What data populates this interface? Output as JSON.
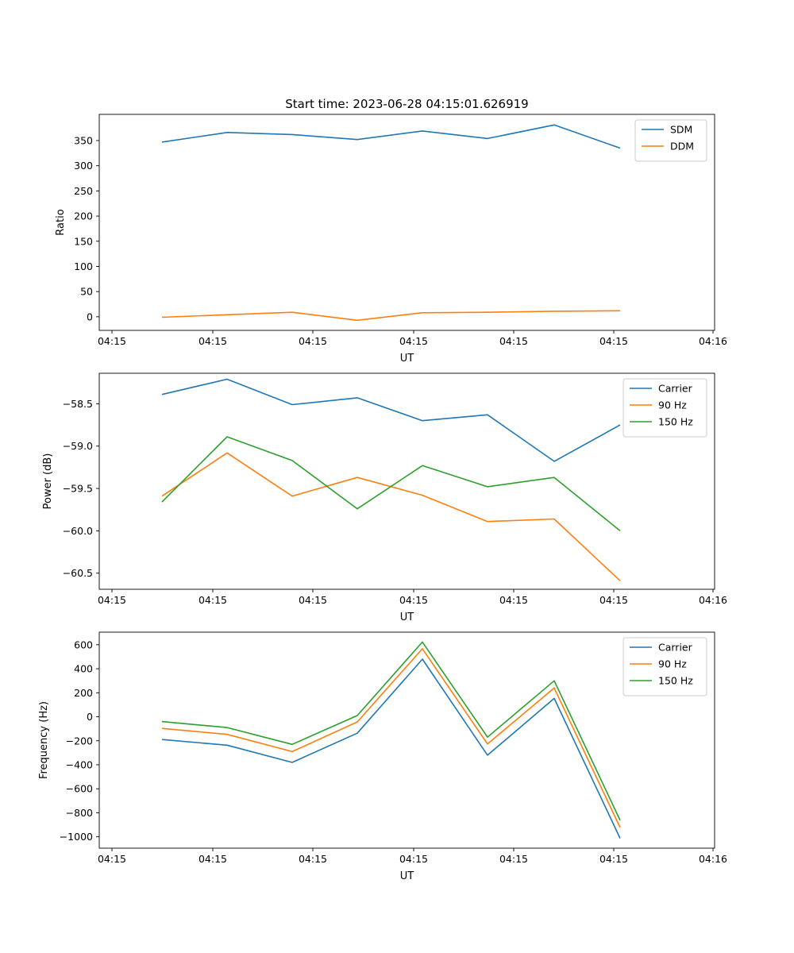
{
  "title": "Start time: 2023-06-28 04:15:01.626919",
  "colors": {
    "blue": "#1f77b4",
    "orange": "#ff7f0e",
    "green": "#2ca02c"
  },
  "chart_data": [
    {
      "type": "line",
      "xlabel": "UT",
      "ylabel": "Ratio",
      "x_ticks": [
        "04:15",
        "04:15",
        "04:15",
        "04:15",
        "04:15",
        "04:15",
        "04:16"
      ],
      "ylim": [
        -27,
        402
      ],
      "y_ticks": [
        0,
        50,
        100,
        150,
        200,
        250,
        300,
        350
      ],
      "legend_position": "upper-right",
      "series": [
        {
          "name": "SDM",
          "color": "#1f77b4",
          "values": [
            347,
            366,
            362,
            352,
            369,
            354,
            381,
            335
          ]
        },
        {
          "name": "DDM",
          "color": "#ff7f0e",
          "values": [
            -1,
            4,
            9,
            -7,
            8,
            9,
            11,
            12
          ]
        }
      ]
    },
    {
      "type": "line",
      "xlabel": "UT",
      "ylabel": "Power (dB)",
      "x_ticks": [
        "04:15",
        "04:15",
        "04:15",
        "04:15",
        "04:15",
        "04:15",
        "04:16"
      ],
      "ylim": [
        -60.69,
        -58.14
      ],
      "y_ticks": [
        -60.5,
        -60.0,
        -59.5,
        -59.0,
        -58.5
      ],
      "legend_position": "upper-right",
      "series": [
        {
          "name": "Carrier",
          "color": "#1f77b4",
          "values": [
            -58.39,
            -58.21,
            -58.51,
            -58.43,
            -58.7,
            -58.63,
            -59.18,
            -58.75
          ]
        },
        {
          "name": "90 Hz",
          "color": "#ff7f0e",
          "values": [
            -59.59,
            -59.08,
            -59.59,
            -59.37,
            -59.58,
            -59.89,
            -59.86,
            -60.59
          ]
        },
        {
          "name": "150 Hz",
          "color": "#2ca02c",
          "values": [
            -59.66,
            -58.89,
            -59.17,
            -59.74,
            -59.23,
            -59.48,
            -59.37,
            -60.0
          ]
        }
      ]
    },
    {
      "type": "line",
      "xlabel": "UT",
      "ylabel": "Frequency (Hz)",
      "x_ticks": [
        "04:15",
        "04:15",
        "04:15",
        "04:15",
        "04:15",
        "04:15",
        "04:16"
      ],
      "ylim": [
        -1095,
        705
      ],
      "y_ticks": [
        -1000,
        -800,
        -600,
        -400,
        -200,
        0,
        200,
        400,
        600
      ],
      "legend_position": "upper-right",
      "series": [
        {
          "name": "Carrier",
          "color": "#1f77b4",
          "values": [
            -190,
            -237,
            -380,
            -137,
            480,
            -320,
            153,
            -1013
          ]
        },
        {
          "name": "90 Hz",
          "color": "#ff7f0e",
          "values": [
            -97,
            -147,
            -290,
            -43,
            567,
            -227,
            240,
            -923
          ]
        },
        {
          "name": "150 Hz",
          "color": "#2ca02c",
          "values": [
            -40,
            -90,
            -230,
            10,
            623,
            -170,
            300,
            -863
          ]
        }
      ]
    }
  ]
}
